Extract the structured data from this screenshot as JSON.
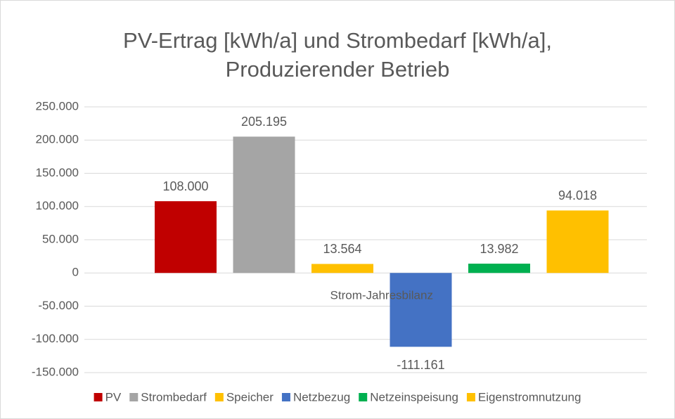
{
  "chart_data": {
    "type": "bar",
    "title": "PV-Ertrag [kWh/a] und Strombedarf [kWh/a],",
    "subtitle": "Produzierender Betrieb",
    "categories": [
      "Strom-Jahresbilanz"
    ],
    "series": [
      {
        "name": "PV",
        "color": "#c00000",
        "values": [
          108000
        ],
        "value_labels": [
          "108.000"
        ]
      },
      {
        "name": "Strombedarf",
        "color": "#a5a5a5",
        "values": [
          205195
        ],
        "value_labels": [
          "205.195"
        ]
      },
      {
        "name": "Speicher",
        "color": "#ffc000",
        "values": [
          13564
        ],
        "value_labels": [
          "13.564"
        ]
      },
      {
        "name": "Netzbezug",
        "color": "#4472c4",
        "values": [
          -111161
        ],
        "value_labels": [
          "-111.161"
        ]
      },
      {
        "name": "Netzeinspeisung",
        "color": "#00b050",
        "values": [
          13982
        ],
        "value_labels": [
          "13.982"
        ]
      },
      {
        "name": "Eigenstromnutzung",
        "color": "#ffc000",
        "values": [
          94018
        ],
        "value_labels": [
          "94.018"
        ]
      }
    ],
    "ylim": [
      -150000,
      250000
    ],
    "yticks": [
      {
        "value": -150000,
        "label": "-150.000"
      },
      {
        "value": -100000,
        "label": "-100.000"
      },
      {
        "value": -50000,
        "label": "-50.000"
      },
      0,
      {
        "value": 50000,
        "label": "50.000"
      },
      {
        "value": 100000,
        "label": "100.000"
      },
      {
        "value": 150000,
        "label": "150.000"
      },
      {
        "value": 200000,
        "label": "200.000"
      },
      {
        "value": 250000,
        "label": "250.000"
      }
    ],
    "grid": true,
    "legend": "bottom"
  }
}
